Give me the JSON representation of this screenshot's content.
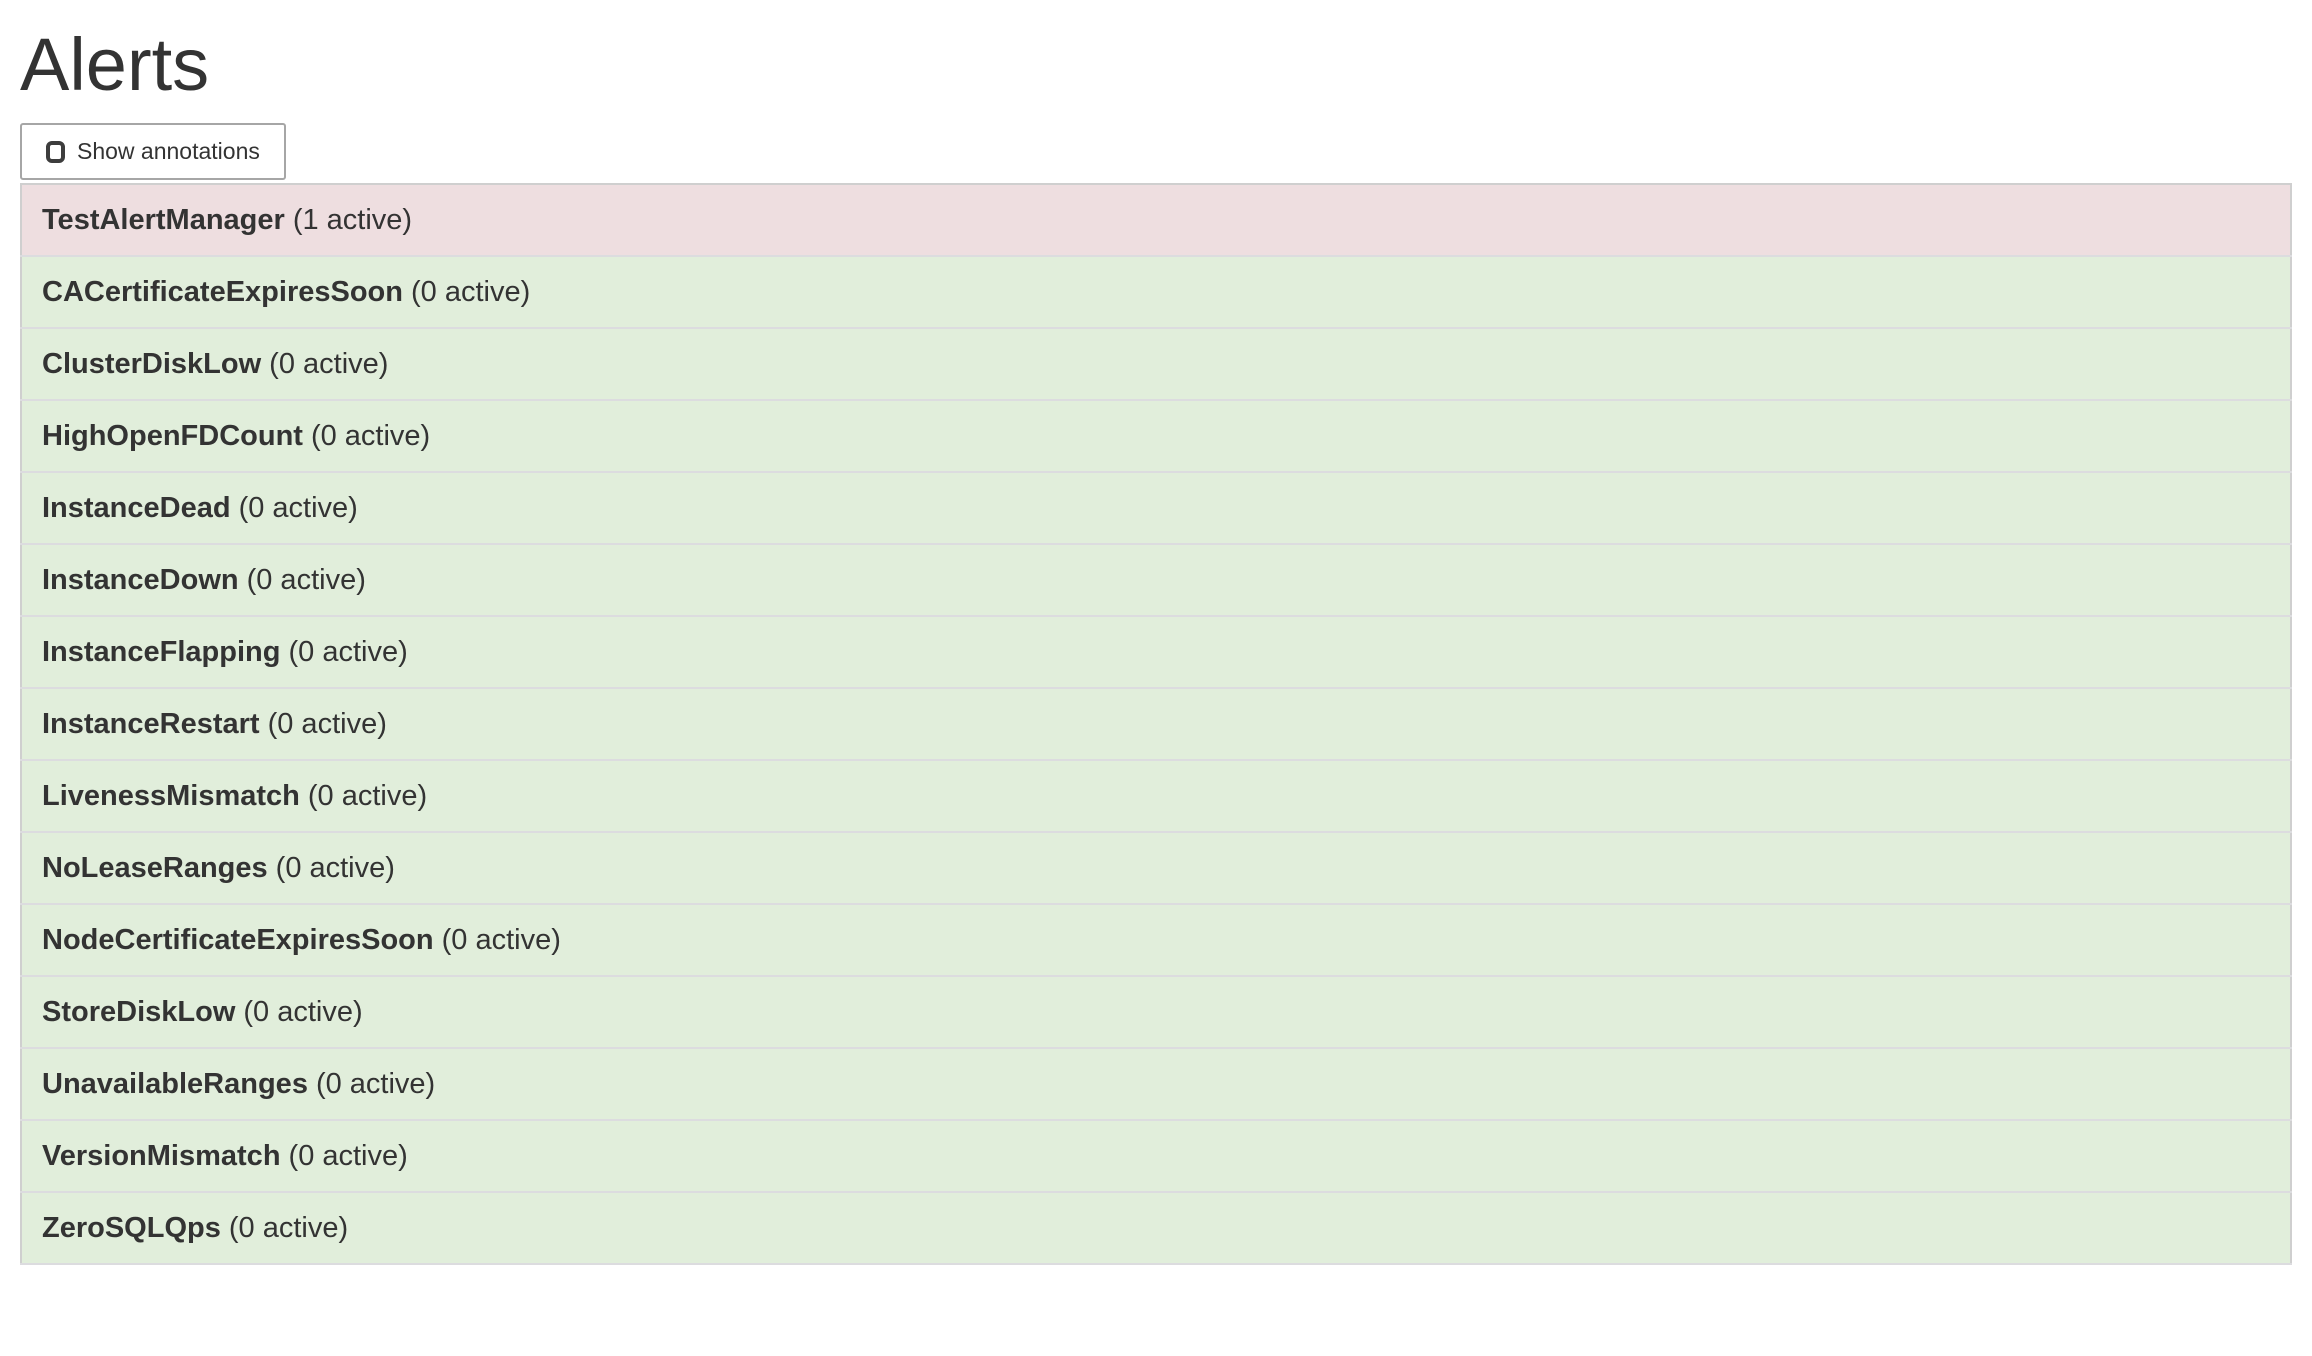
{
  "page": {
    "title": "Alerts"
  },
  "toolbar": {
    "show_annotations": {
      "label": "Show annotations",
      "checked": false
    }
  },
  "alerts": [
    {
      "name": "TestAlertManager",
      "count": "(1 active)",
      "state": "firing"
    },
    {
      "name": "CACertificateExpiresSoon",
      "count": "(0 active)",
      "state": "inactive"
    },
    {
      "name": "ClusterDiskLow",
      "count": "(0 active)",
      "state": "inactive"
    },
    {
      "name": "HighOpenFDCount",
      "count": "(0 active)",
      "state": "inactive"
    },
    {
      "name": "InstanceDead",
      "count": "(0 active)",
      "state": "inactive"
    },
    {
      "name": "InstanceDown",
      "count": "(0 active)",
      "state": "inactive"
    },
    {
      "name": "InstanceFlapping",
      "count": "(0 active)",
      "state": "inactive"
    },
    {
      "name": "InstanceRestart",
      "count": "(0 active)",
      "state": "inactive"
    },
    {
      "name": "LivenessMismatch",
      "count": "(0 active)",
      "state": "inactive"
    },
    {
      "name": "NoLeaseRanges",
      "count": "(0 active)",
      "state": "inactive"
    },
    {
      "name": "NodeCertificateExpiresSoon",
      "count": "(0 active)",
      "state": "inactive"
    },
    {
      "name": "StoreDiskLow",
      "count": "(0 active)",
      "state": "inactive"
    },
    {
      "name": "UnavailableRanges",
      "count": "(0 active)",
      "state": "inactive"
    },
    {
      "name": "VersionMismatch",
      "count": "(0 active)",
      "state": "inactive"
    },
    {
      "name": "ZeroSQLQps",
      "count": "(0 active)",
      "state": "inactive"
    }
  ],
  "colors": {
    "firing_row_bg": "#eedee0",
    "inactive_row_bg": "#e1eedb",
    "row_border": "#dcdcdf",
    "table_outer_border": "#cfcfcf",
    "text": "#333333",
    "button_border": "#a6a6a6",
    "checkbox_outline": "#3d3d3d"
  }
}
